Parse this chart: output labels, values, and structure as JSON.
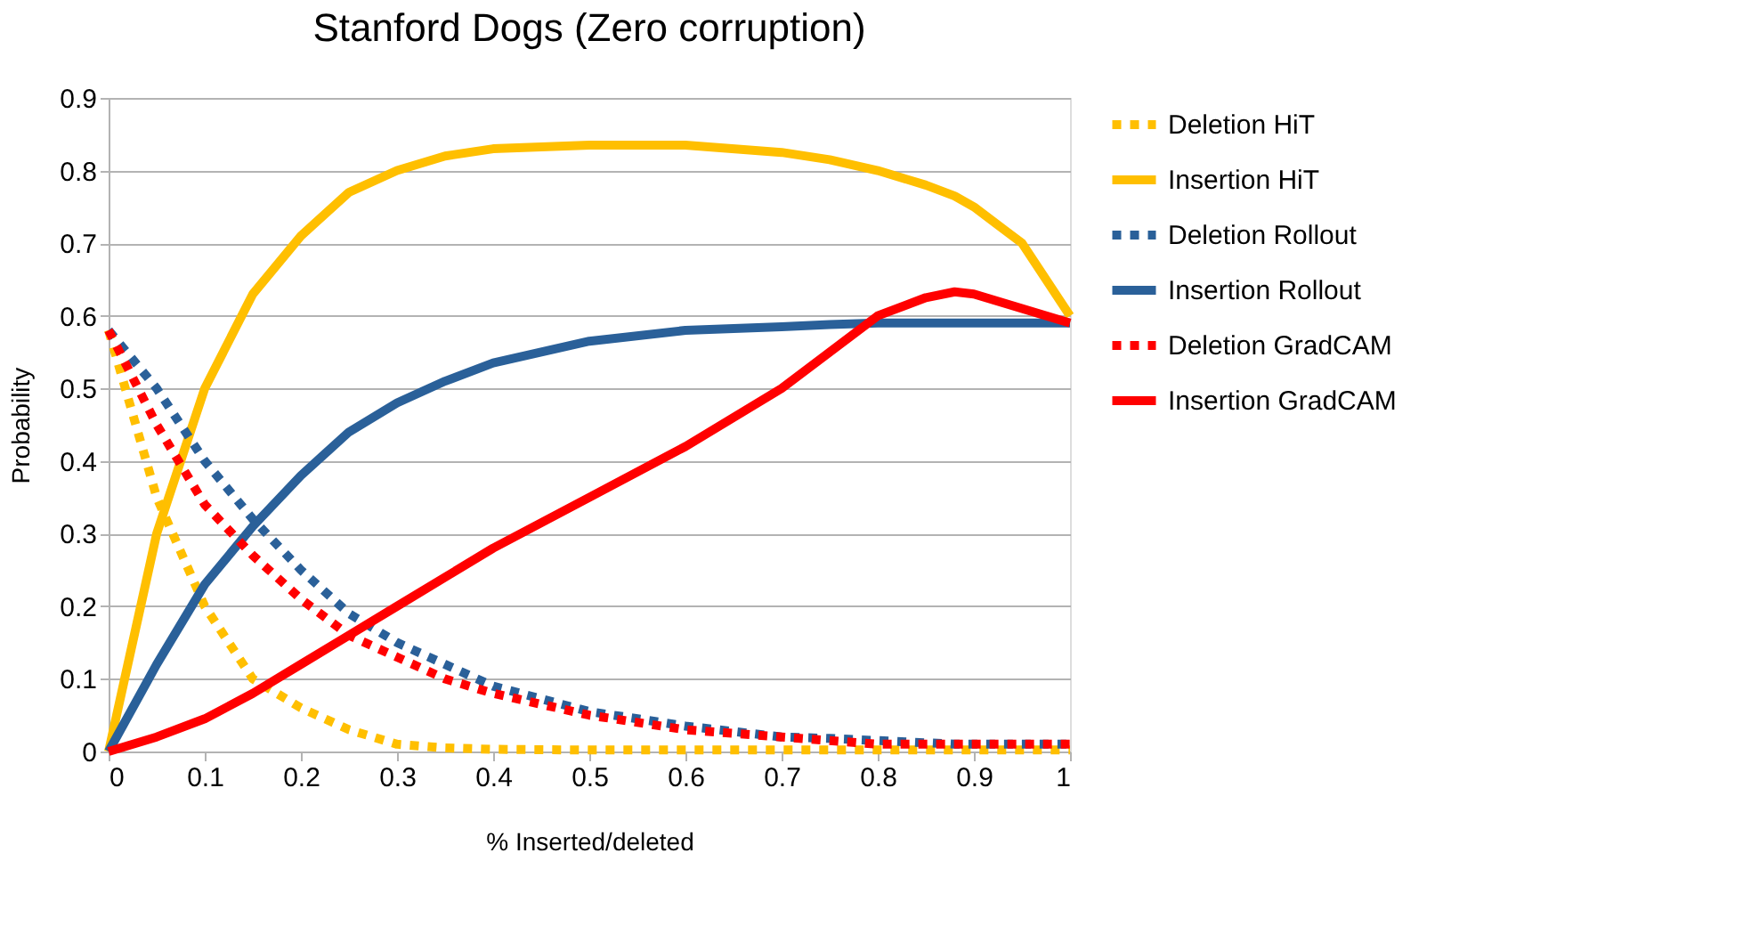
{
  "chart_data": {
    "type": "line",
    "title": "Stanford Dogs (Zero corruption)",
    "xlabel": "% Inserted/deleted",
    "ylabel": "Probability",
    "xlim": [
      0,
      1
    ],
    "xticks": [
      0,
      0.1,
      0.2,
      0.3,
      0.4,
      0.5,
      0.6,
      0.7,
      0.8,
      0.9,
      1
    ],
    "ylim": [
      0,
      0.9
    ],
    "yticks": [
      0,
      0.1,
      0.2,
      0.3,
      0.4,
      0.5,
      0.6,
      0.7,
      0.8,
      0.9
    ],
    "grid": "y",
    "legend": "right",
    "marker": "none",
    "x": [
      0,
      0.05,
      0.1,
      0.15,
      0.2,
      0.25,
      0.3,
      0.35,
      0.4,
      0.5,
      0.6,
      0.7,
      0.75,
      0.8,
      0.85,
      0.88,
      0.9,
      0.95,
      1
    ],
    "series": [
      {
        "name": "Deletion HiT",
        "color": "#ffbf00",
        "line_style": "dotted",
        "values": [
          0.58,
          0.35,
          0.2,
          0.1,
          0.06,
          0.03,
          0.01,
          0.005,
          0.003,
          0.002,
          0.002,
          0.002,
          0.002,
          0.002,
          0.002,
          0.002,
          0.002,
          0.002,
          0.002
        ]
      },
      {
        "name": "Insertion HiT",
        "color": "#ffbf00",
        "line_style": "solid",
        "values": [
          0,
          0.3,
          0.5,
          0.63,
          0.71,
          0.77,
          0.8,
          0.82,
          0.83,
          0.835,
          0.835,
          0.825,
          0.815,
          0.8,
          0.78,
          0.765,
          0.75,
          0.7,
          0.6
        ]
      },
      {
        "name": "Deletion Rollout",
        "color": "#2a6099",
        "line_style": "dotted",
        "values": [
          0.58,
          0.5,
          0.4,
          0.32,
          0.25,
          0.19,
          0.15,
          0.12,
          0.09,
          0.055,
          0.035,
          0.02,
          0.018,
          0.015,
          0.012,
          0.01,
          0.01,
          0.01,
          0.01
        ]
      },
      {
        "name": "Insertion Rollout",
        "color": "#2a6099",
        "line_style": "solid",
        "values": [
          0,
          0.12,
          0.23,
          0.31,
          0.38,
          0.44,
          0.48,
          0.51,
          0.535,
          0.565,
          0.58,
          0.585,
          0.588,
          0.59,
          0.59,
          0.59,
          0.59,
          0.59,
          0.59
        ]
      },
      {
        "name": "Deletion GradCAM",
        "color": "#ff0000",
        "line_style": "dotted",
        "values": [
          0.58,
          0.45,
          0.34,
          0.27,
          0.21,
          0.16,
          0.13,
          0.1,
          0.08,
          0.05,
          0.03,
          0.02,
          0.015,
          0.01,
          0.01,
          0.01,
          0.01,
          0.01,
          0.01
        ]
      },
      {
        "name": "Insertion GradCAM",
        "color": "#ff0000",
        "line_style": "solid",
        "values": [
          0,
          0.02,
          0.045,
          0.08,
          0.12,
          0.16,
          0.2,
          0.24,
          0.28,
          0.35,
          0.42,
          0.5,
          0.55,
          0.6,
          0.625,
          0.633,
          0.63,
          0.61,
          0.59
        ]
      }
    ]
  }
}
